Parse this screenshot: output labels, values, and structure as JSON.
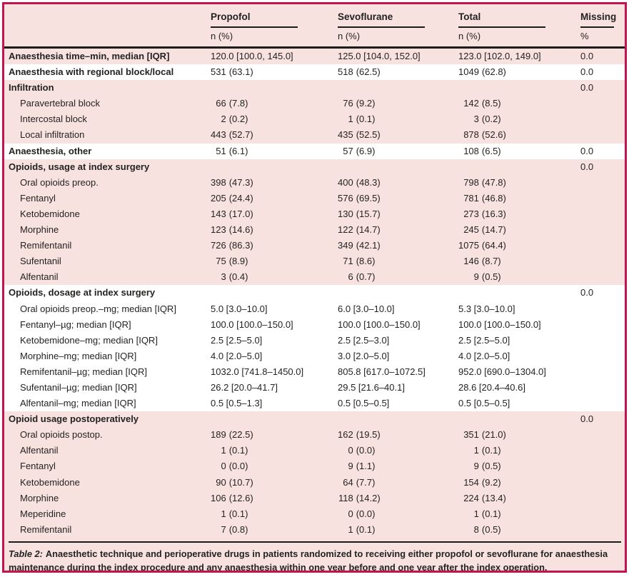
{
  "header": {
    "columns": [
      {
        "id": "propofol",
        "label": "Propofol",
        "sub": "n (%)"
      },
      {
        "id": "sevoflurane",
        "label": "Sevoflurane",
        "sub": "n (%)"
      },
      {
        "id": "total",
        "label": "Total",
        "sub": "n (%)"
      },
      {
        "id": "missing",
        "label": "Missing",
        "sub": "%"
      }
    ]
  },
  "rows": [
    {
      "label": "Anaesthesia time–min, median [IQR]",
      "bold": true,
      "indent": false,
      "band": "pink",
      "propofol": "120.0 [100.0, 145.0]",
      "sevoflurane": "125.0 [104.0, 152.0]",
      "total": "123.0 [102.0, 149.0]",
      "missing": "0.0"
    },
    {
      "label": "Anaesthesia with regional block/local",
      "bold": true,
      "indent": false,
      "band": "white",
      "propofol": "531 (63.1)",
      "sevoflurane": "518 (62.5)",
      "total": "1049 (62.8)",
      "missing": "0.0"
    },
    {
      "label": "Infiltration",
      "bold": true,
      "indent": false,
      "band": "pink",
      "propofol": "",
      "sevoflurane": "",
      "total": "",
      "missing": "0.0"
    },
    {
      "label": "Paravertebral block",
      "bold": false,
      "indent": true,
      "band": "pink",
      "propofol": "66 (7.8)",
      "sevoflurane": "76 (9.2)",
      "total": "142 (8.5)",
      "missing": ""
    },
    {
      "label": "Intercostal block",
      "bold": false,
      "indent": true,
      "band": "pink",
      "propofol": "2 (0.2)",
      "sevoflurane": "1 (0.1)",
      "total": "3 (0.2)",
      "missing": ""
    },
    {
      "label": "Local infiltration",
      "bold": false,
      "indent": true,
      "band": "pink",
      "propofol": "443 (52.7)",
      "sevoflurane": "435 (52.5)",
      "total": "878 (52.6)",
      "missing": ""
    },
    {
      "label": "Anaesthesia, other",
      "bold": true,
      "indent": false,
      "band": "white",
      "propofol": "51 (6.1)",
      "sevoflurane": "57 (6.9)",
      "total": "108 (6.5)",
      "missing": "0.0"
    },
    {
      "label": "Opioids, usage at index surgery",
      "bold": true,
      "indent": false,
      "band": "pink",
      "propofol": "",
      "sevoflurane": "",
      "total": "",
      "missing": "0.0"
    },
    {
      "label": "Oral opioids preop.",
      "bold": false,
      "indent": true,
      "band": "pink",
      "propofol": "398 (47.3)",
      "sevoflurane": "400 (48.3)",
      "total": "798 (47.8)",
      "missing": ""
    },
    {
      "label": "Fentanyl",
      "bold": false,
      "indent": true,
      "band": "pink",
      "propofol": "205 (24.4)",
      "sevoflurane": "576 (69.5)",
      "total": "781 (46.8)",
      "missing": ""
    },
    {
      "label": "Ketobemidone",
      "bold": false,
      "indent": true,
      "band": "pink",
      "propofol": "143 (17.0)",
      "sevoflurane": "130 (15.7)",
      "total": "273 (16.3)",
      "missing": ""
    },
    {
      "label": "Morphine",
      "bold": false,
      "indent": true,
      "band": "pink",
      "propofol": "123 (14.6)",
      "sevoflurane": "122 (14.7)",
      "total": "245 (14.7)",
      "missing": ""
    },
    {
      "label": "Remifentanil",
      "bold": false,
      "indent": true,
      "band": "pink",
      "propofol": "726 (86.3)",
      "sevoflurane": "349 (42.1)",
      "total": "1075 (64.4)",
      "missing": ""
    },
    {
      "label": "Sufentanil",
      "bold": false,
      "indent": true,
      "band": "pink",
      "propofol": "75 (8.9)",
      "sevoflurane": "71 (8.6)",
      "total": "146 (8.7)",
      "missing": ""
    },
    {
      "label": "Alfentanil",
      "bold": false,
      "indent": true,
      "band": "pink",
      "propofol": "3 (0.4)",
      "sevoflurane": "6 (0.7)",
      "total": "9 (0.5)",
      "missing": ""
    },
    {
      "label": "Opioids, dosage at index surgery",
      "bold": true,
      "indent": false,
      "band": "white",
      "propofol": "",
      "sevoflurane": "",
      "total": "",
      "missing": "0.0"
    },
    {
      "label": "Oral opioids preop.–mg; median [IQR]",
      "bold": false,
      "indent": true,
      "band": "white",
      "propofol": "5.0 [3.0–10.0]",
      "sevoflurane": "6.0 [3.0–10.0]",
      "total": "5.3 [3.0–10.0]",
      "missing": ""
    },
    {
      "label": "Fentanyl–µg; median [IQR]",
      "bold": false,
      "indent": true,
      "band": "white",
      "propofol": "100.0 [100.0–150.0]",
      "sevoflurane": "100.0 [100.0–150.0]",
      "total": "100.0 [100.0–150.0]",
      "missing": ""
    },
    {
      "label": "Ketobemidone–mg; median [IQR]",
      "bold": false,
      "indent": true,
      "band": "white",
      "propofol": "2.5 [2.5–5.0]",
      "sevoflurane": "2.5 [2.5–3.0]",
      "total": "2.5 [2.5–5.0]",
      "missing": ""
    },
    {
      "label": "Morphine–mg; median [IQR]",
      "bold": false,
      "indent": true,
      "band": "white",
      "propofol": "4.0 [2.0–5.0]",
      "sevoflurane": "3.0 [2.0–5.0]",
      "total": "4.0 [2.0–5.0]",
      "missing": ""
    },
    {
      "label": "Remifentanil–µg; median [IQR]",
      "bold": false,
      "indent": true,
      "band": "white",
      "propofol": "1032.0 [741.8–1450.0]",
      "sevoflurane": "805.8 [617.0–1072.5]",
      "total": "952.0 [690.0–1304.0]",
      "missing": ""
    },
    {
      "label": "Sufentanil–µg; median [IQR]",
      "bold": false,
      "indent": true,
      "band": "white",
      "propofol": "26.2 [20.0–41.7]",
      "sevoflurane": "29.5 [21.6–40.1]",
      "total": "28.6 [20.4–40.6]",
      "missing": ""
    },
    {
      "label": "Alfentanil–mg; median [IQR]",
      "bold": false,
      "indent": true,
      "band": "white",
      "propofol": "0.5 [0.5–1.3]",
      "sevoflurane": "0.5 [0.5–0.5]",
      "total": "0.5 [0.5–0.5]",
      "missing": ""
    },
    {
      "label": "Opioid usage postoperatively",
      "bold": true,
      "indent": false,
      "band": "pink",
      "propofol": "",
      "sevoflurane": "",
      "total": "",
      "missing": "0.0"
    },
    {
      "label": "Oral opioids postop.",
      "bold": false,
      "indent": true,
      "band": "pink",
      "propofol": "189 (22.5)",
      "sevoflurane": "162 (19.5)",
      "total": "351 (21.0)",
      "missing": ""
    },
    {
      "label": "Alfentanil",
      "bold": false,
      "indent": true,
      "band": "pink",
      "propofol": "1 (0.1)",
      "sevoflurane": "0 (0.0)",
      "total": "1 (0.1)",
      "missing": ""
    },
    {
      "label": "Fentanyl",
      "bold": false,
      "indent": true,
      "band": "pink",
      "propofol": "0 (0.0)",
      "sevoflurane": "9 (1.1)",
      "total": "9 (0.5)",
      "missing": ""
    },
    {
      "label": "Ketobemidone",
      "bold": false,
      "indent": true,
      "band": "pink",
      "propofol": "90 (10.7)",
      "sevoflurane": "64 (7.7)",
      "total": "154 (9.2)",
      "missing": ""
    },
    {
      "label": "Morphine",
      "bold": false,
      "indent": true,
      "band": "pink",
      "propofol": "106 (12.6)",
      "sevoflurane": "118 (14.2)",
      "total": "224 (13.4)",
      "missing": ""
    },
    {
      "label": "Meperidine",
      "bold": false,
      "indent": true,
      "band": "pink",
      "propofol": "1 (0.1)",
      "sevoflurane": "0 (0.0)",
      "total": "1 (0.1)",
      "missing": ""
    },
    {
      "label": "Remifentanil",
      "bold": false,
      "indent": true,
      "band": "pink",
      "propofol": "7 (0.8)",
      "sevoflurane": "1 (0.1)",
      "total": "8 (0.5)",
      "missing": ""
    }
  ],
  "caption": {
    "prefix": "Table 2:",
    "text": "Anaesthetic technique and perioperative drugs in patients randomized to receiving either propofol or sevoflurane for anaesthesia maintenance during the index procedure and any anaesthesia within one year before and one year after the index operation."
  },
  "colors": {
    "frame_border": "#c4134e",
    "band_pink": "#f8e2e0",
    "band_white": "#ffffff",
    "rule": "#1b1b19",
    "text": "#232321"
  }
}
